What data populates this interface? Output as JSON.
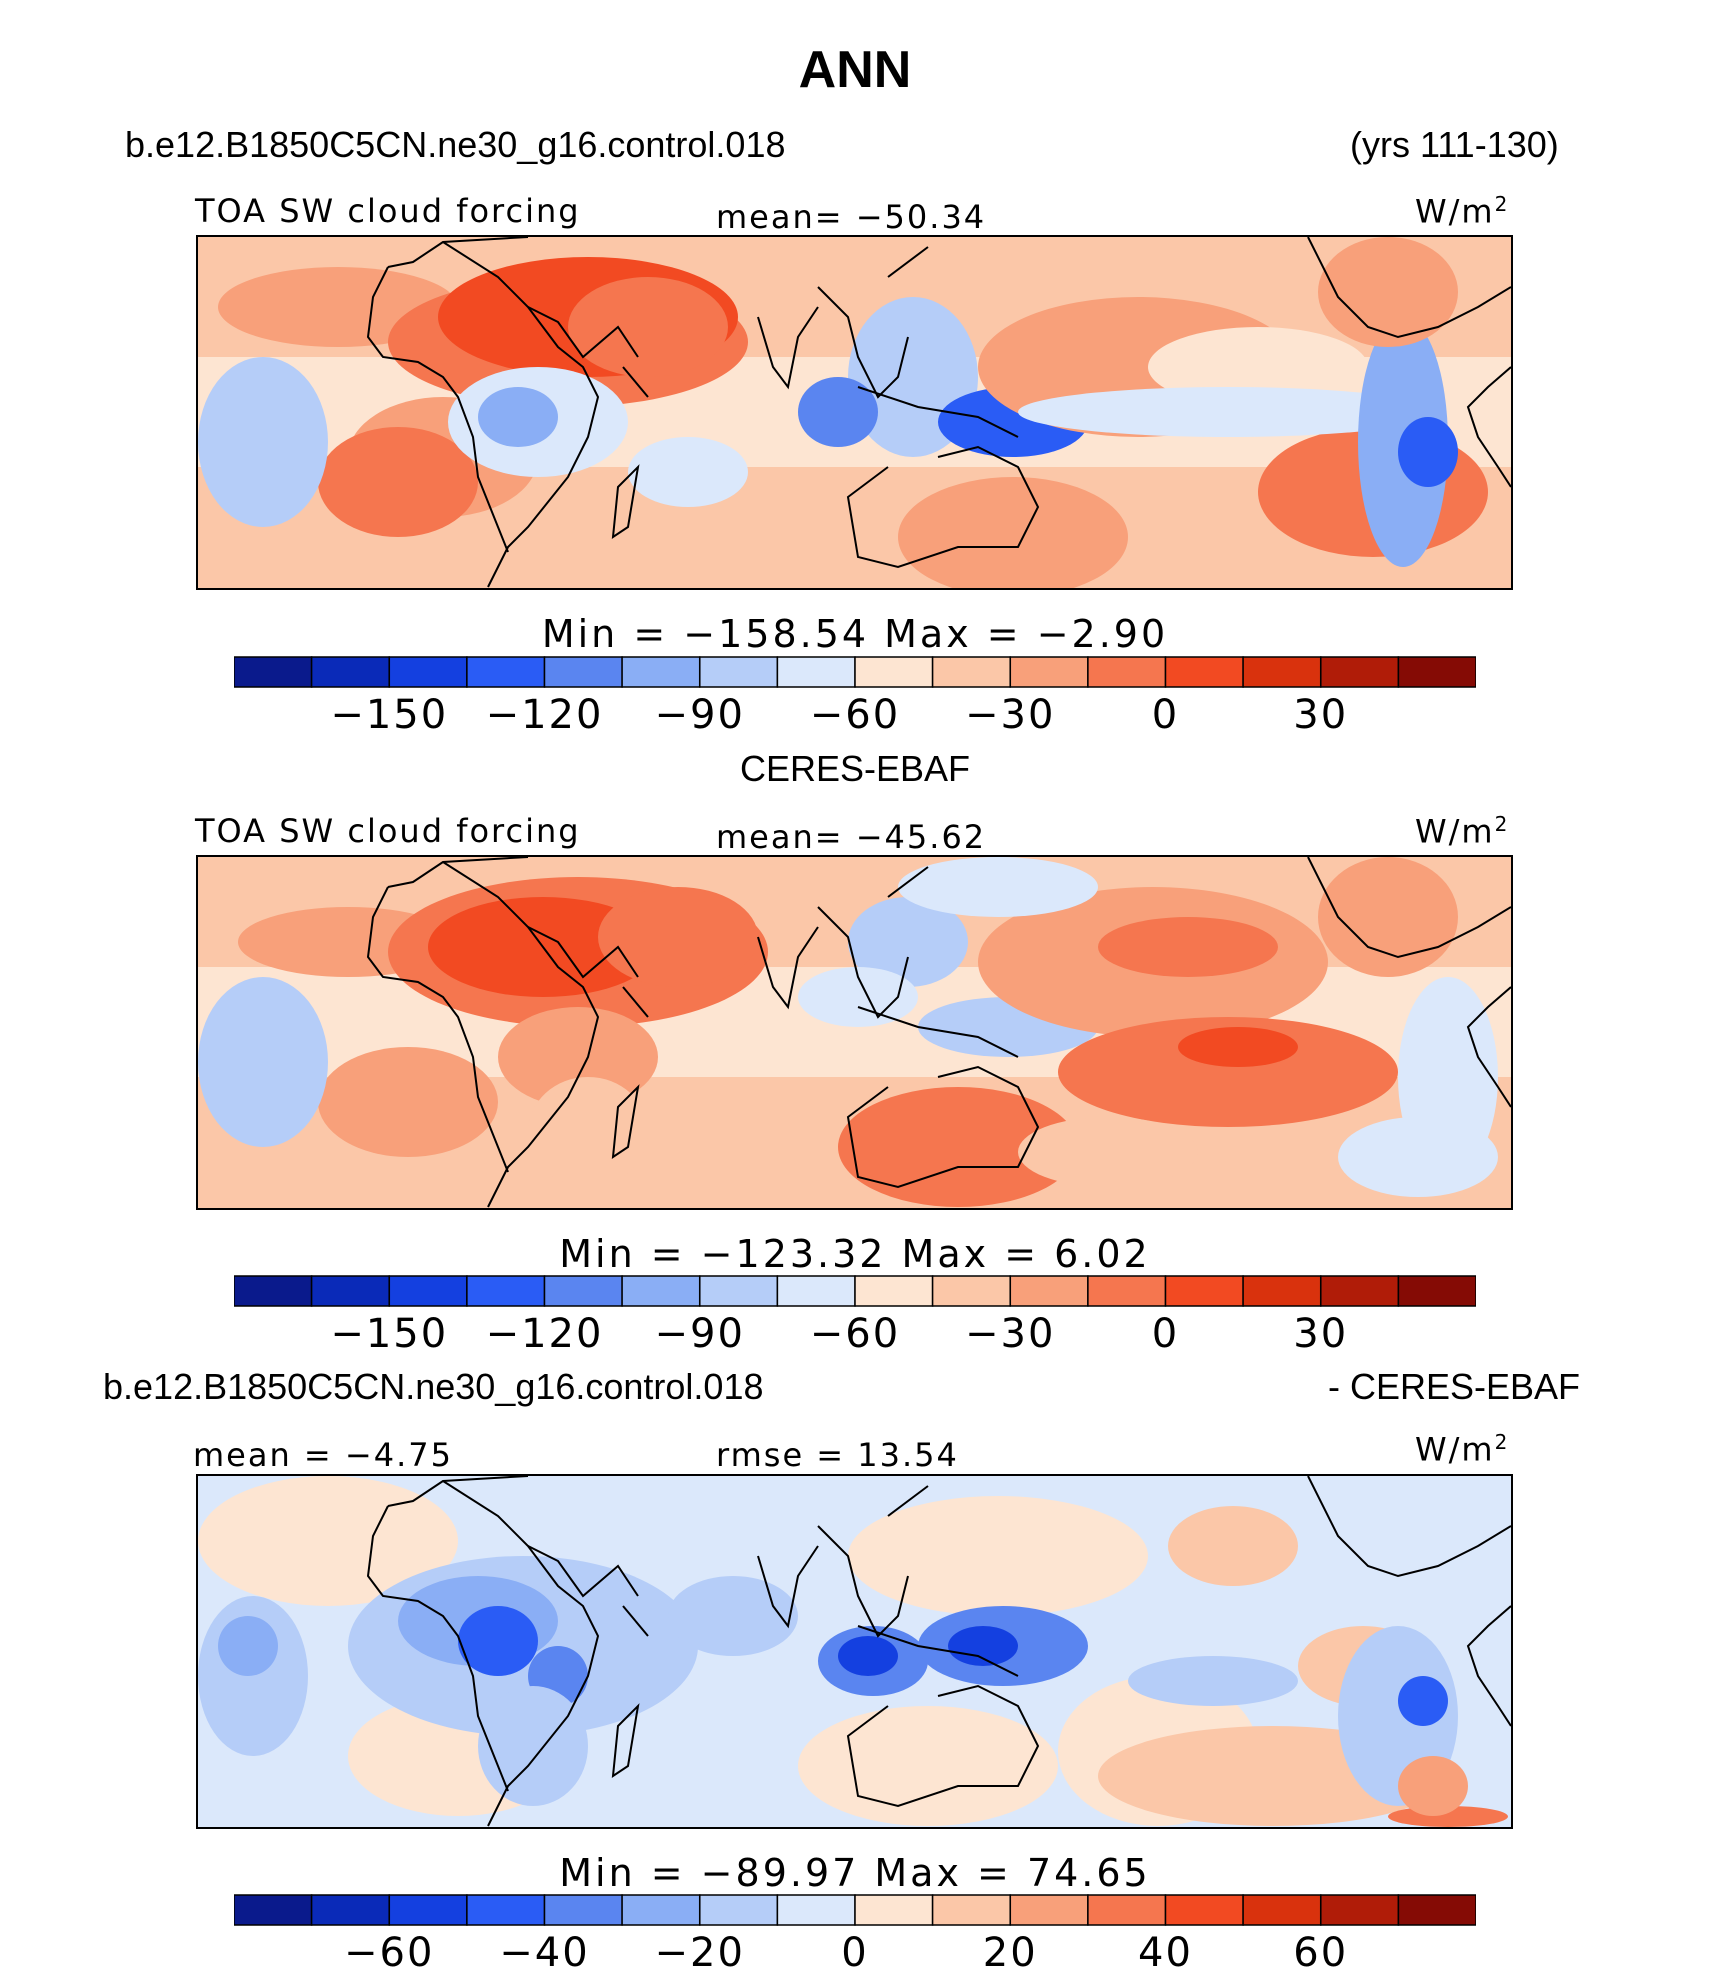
{
  "figure": {
    "title": "ANN",
    "case_name": "b.e12.B1850C5CN.ne30_g16.control.018",
    "years": "(yrs 111-130)",
    "obs_name": "CERES-EBAF",
    "diff_case_name": "b.e12.B1850C5CN.ne30_g16.control.018",
    "diff_obs_name": "- CERES-EBAF"
  },
  "colors": [
    "#0a1a8c",
    "#0a2ab8",
    "#1440e0",
    "#2a5cf5",
    "#5a85f0",
    "#8aaef5",
    "#b5cdf8",
    "#dbe8fb",
    "#fde5d2",
    "#fbc7a8",
    "#f8a07a",
    "#f5764f",
    "#f24a22",
    "#d9320d",
    "#b01c08",
    "#850b05"
  ],
  "chart_data": [
    {
      "type": "heatmap",
      "panel": "model",
      "variable": "TOA SW cloud forcing",
      "units": "W/m2",
      "units_label": "W/m",
      "units_sup": "2",
      "mean_label": "mean= −50.34",
      "mean": -50.34,
      "min_max_label": "Min = −158.54 Max = −2.90",
      "min": -158.54,
      "max": -2.9,
      "colorbar_ticks": [
        "−150",
        "−120",
        "−90",
        "−60",
        "−30",
        "0",
        "30"
      ],
      "tick_values": [
        -150,
        -120,
        -90,
        -60,
        -30,
        0,
        30
      ],
      "levels": [
        -165,
        -150,
        -135,
        -120,
        -105,
        -90,
        -75,
        -60,
        -45,
        -30,
        -15,
        0,
        15,
        30,
        45
      ]
    },
    {
      "type": "heatmap",
      "panel": "observation",
      "variable": "TOA SW cloud forcing",
      "units": "W/m2",
      "units_label": "W/m",
      "units_sup": "2",
      "mean_label": "mean= −45.62",
      "mean": -45.62,
      "min_max_label": "Min = −123.32 Max = 6.02",
      "min": -123.32,
      "max": 6.02,
      "colorbar_ticks": [
        "−150",
        "−120",
        "−90",
        "−60",
        "−30",
        "0",
        "30"
      ],
      "tick_values": [
        -150,
        -120,
        -90,
        -60,
        -30,
        0,
        30
      ],
      "levels": [
        -165,
        -150,
        -135,
        -120,
        -105,
        -90,
        -75,
        -60,
        -45,
        -30,
        -15,
        0,
        15,
        30,
        45
      ]
    },
    {
      "type": "heatmap",
      "panel": "difference",
      "variable": "TOA SW cloud forcing",
      "units": "W/m2",
      "units_label": "W/m",
      "units_sup": "2",
      "mean_label": "mean = −4.75",
      "mean": -4.75,
      "rmse_label": "rmse = 13.54",
      "rmse": 13.54,
      "min_max_label": "Min = −89.97 Max = 74.65",
      "min": -89.97,
      "max": 74.65,
      "colorbar_ticks": [
        "−60",
        "−40",
        "−20",
        "0",
        "20",
        "40",
        "60"
      ],
      "tick_values": [
        -60,
        -40,
        -20,
        0,
        20,
        40,
        60
      ],
      "levels": [
        -70,
        -60,
        -50,
        -40,
        -30,
        -20,
        -10,
        0,
        10,
        20,
        30,
        40,
        50,
        60,
        70
      ]
    }
  ]
}
